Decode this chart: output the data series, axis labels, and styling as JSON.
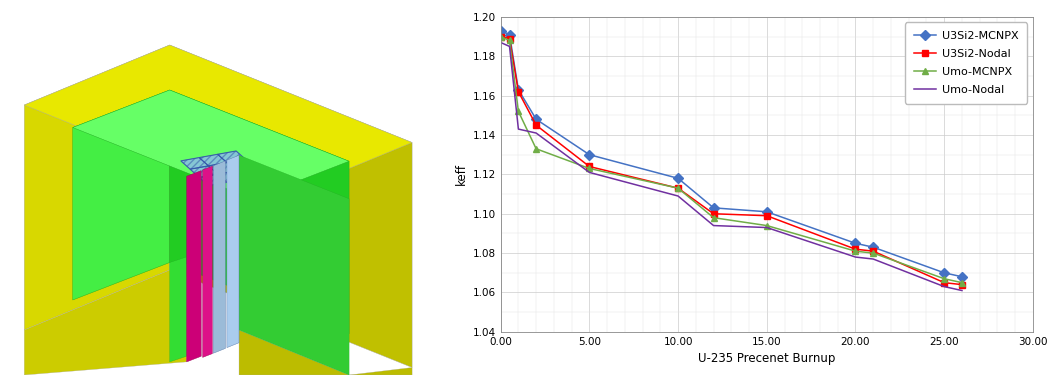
{
  "series": {
    "U3Si2-MCNPX": {
      "x": [
        0.0,
        0.5,
        1.0,
        2.0,
        5.0,
        10.0,
        12.0,
        15.0,
        20.0,
        21.0,
        25.0,
        26.0
      ],
      "y": [
        1.193,
        1.191,
        1.163,
        1.148,
        1.13,
        1.118,
        1.103,
        1.101,
        1.085,
        1.083,
        1.07,
        1.068
      ],
      "color": "#4472C4",
      "marker": "D",
      "markersize": 5
    },
    "U3Si2-Nodal": {
      "x": [
        0.0,
        0.5,
        1.0,
        2.0,
        5.0,
        10.0,
        12.0,
        15.0,
        20.0,
        21.0,
        25.0,
        26.0
      ],
      "y": [
        1.19,
        1.189,
        1.162,
        1.145,
        1.124,
        1.113,
        1.1,
        1.099,
        1.082,
        1.081,
        1.065,
        1.064
      ],
      "color": "#FF0000",
      "marker": "s",
      "markersize": 5
    },
    "Umo-MCNPX": {
      "x": [
        0.0,
        0.5,
        1.0,
        2.0,
        5.0,
        10.0,
        12.0,
        15.0,
        20.0,
        21.0,
        25.0,
        26.0
      ],
      "y": [
        1.19,
        1.188,
        1.152,
        1.133,
        1.123,
        1.113,
        1.098,
        1.094,
        1.081,
        1.08,
        1.067,
        1.065
      ],
      "color": "#70AD47",
      "marker": "^",
      "markersize": 5
    },
    "Umo-Nodal": {
      "x": [
        0.0,
        0.5,
        1.0,
        2.0,
        5.0,
        10.0,
        12.0,
        15.0,
        20.0,
        21.0,
        25.0,
        26.0
      ],
      "y": [
        1.187,
        1.185,
        1.143,
        1.141,
        1.121,
        1.109,
        1.094,
        1.093,
        1.078,
        1.077,
        1.063,
        1.061
      ],
      "color": "#7030A0",
      "marker": "None",
      "markersize": 4
    }
  },
  "xlabel": "U-235 Precenet Burnup",
  "ylabel": "keff",
  "xlim": [
    0.0,
    30.0
  ],
  "ylim": [
    1.04,
    1.2
  ],
  "xticks": [
    0.0,
    5.0,
    10.0,
    15.0,
    20.0,
    25.0,
    30.0
  ],
  "yticks": [
    1.04,
    1.06,
    1.08,
    1.1,
    1.12,
    1.14,
    1.16,
    1.18,
    1.2
  ],
  "xtick_labels": [
    "0.00",
    "5.00",
    "10.00",
    "15.00",
    "20.00",
    "25.00",
    "30.00"
  ],
  "ytick_labels": [
    "1.04",
    "1.06",
    "1.08",
    "1.10",
    "1.12",
    "1.14",
    "1.16",
    "1.18",
    "1.20"
  ],
  "grid_color": "#CCCCCC",
  "bg_color": "#FFFFFF",
  "legend_order": [
    "U3Si2-MCNPX",
    "U3Si2-Nodal",
    "Umo-MCNPX",
    "Umo-Nodal"
  ],
  "yellow_bright": "#E8E800",
  "yellow_top": "#D4D400",
  "yellow_right": "#BCBC00",
  "yellow_left": "#CCCC00",
  "green_bright": "#00FF00",
  "green_top": "#00EE00",
  "green_right": "#00CC00",
  "green_left": "#00DD00",
  "pink_color": "#CC0066",
  "blue_plate": "#7799CC",
  "blue_edge": "#4466AA"
}
